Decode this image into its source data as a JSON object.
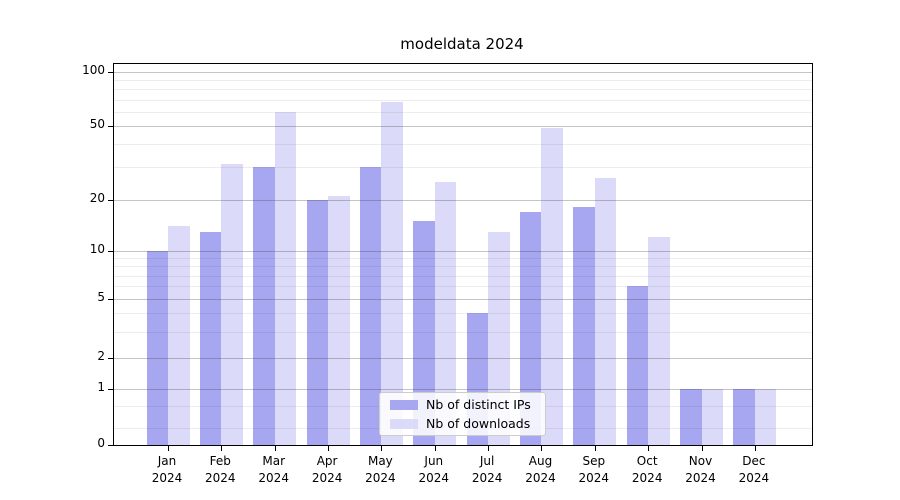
{
  "title": "modeldata 2024",
  "chart_data": {
    "type": "bar",
    "title": "modeldata 2024",
    "categories": [
      "Jan",
      "Feb",
      "Mar",
      "Apr",
      "May",
      "Jun",
      "Jul",
      "Aug",
      "Sep",
      "Oct",
      "Nov",
      "Dec"
    ],
    "x_sublabel": "2024",
    "series": [
      {
        "name": "Nb of distinct IPs",
        "color": "#a6a6f1",
        "values": [
          10,
          13,
          30,
          20,
          30,
          15,
          4,
          17,
          18,
          6,
          1,
          1
        ]
      },
      {
        "name": "Nb of downloads",
        "color": "#dbdbf9",
        "values": [
          14,
          31,
          60,
          21,
          68,
          25,
          13,
          49,
          26,
          12,
          1,
          1
        ]
      }
    ],
    "y_major_ticks": [
      100,
      50,
      20,
      10,
      5,
      2,
      1,
      0
    ],
    "y_minor_gridlines": [
      0.3,
      0.7,
      3,
      4,
      6,
      7,
      8,
      9,
      30,
      40,
      60,
      70,
      80,
      90
    ],
    "ylim": [
      0,
      110
    ],
    "yscale": "symlog (log above 1, linear 0 to 1)",
    "xlabel": "",
    "ylabel": "",
    "grid": "both, horizontal only",
    "legend_position": "lower center"
  }
}
